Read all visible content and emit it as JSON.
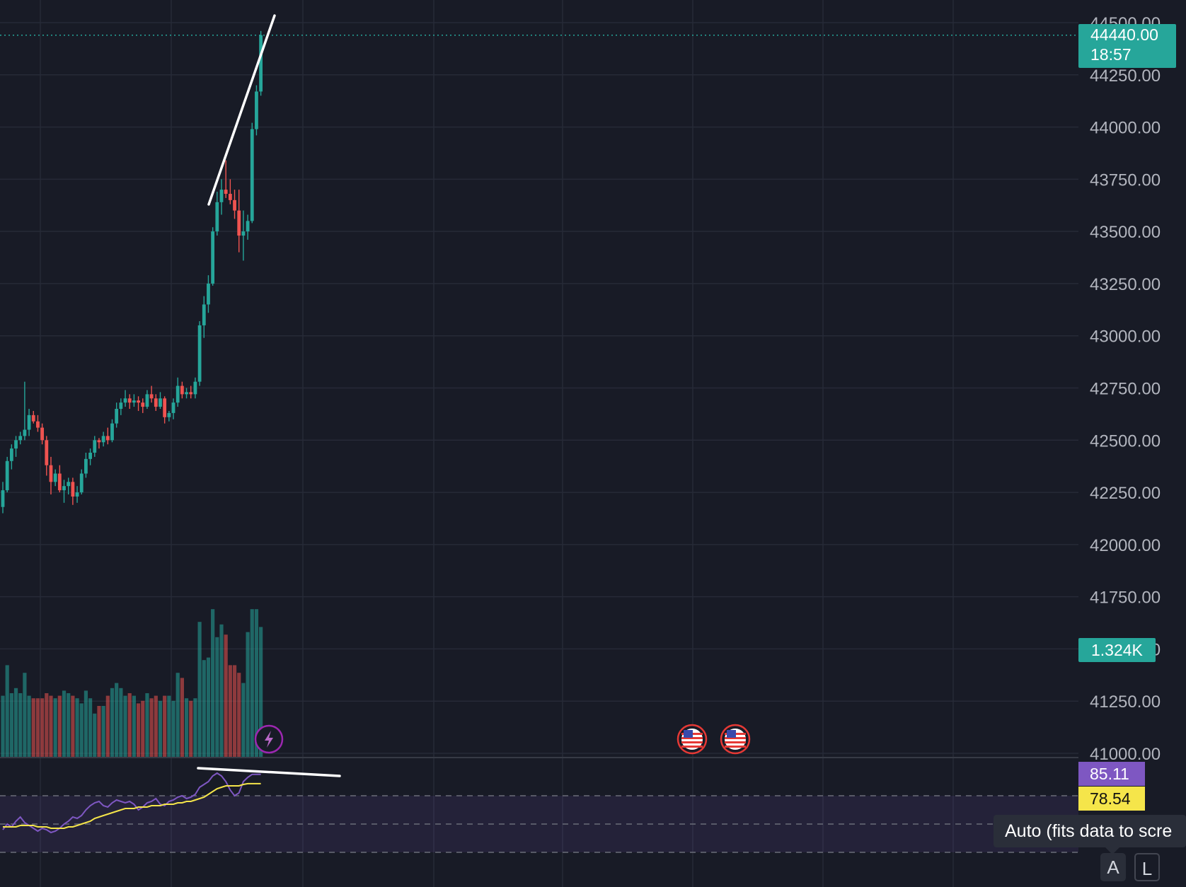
{
  "chart_data": {
    "type": "candlestick",
    "price_axis": {
      "ticks": [
        "44500.00",
        "44250.00",
        "44000.00",
        "43750.00",
        "43500.00",
        "43250.00",
        "43000.00",
        "42750.00",
        "42500.00",
        "42250.00",
        "42000.00",
        "41750.00",
        "41500.00",
        "41250.00",
        "41000.00"
      ],
      "range": [
        41000,
        44500
      ]
    },
    "last_price": {
      "value": "44440.00",
      "countdown": "18:57",
      "color": "#26a69a"
    },
    "volume_label": "1.324K",
    "ohlc": [
      [
        42180,
        42300,
        42150,
        42260
      ],
      [
        42260,
        42420,
        42250,
        42400
      ],
      [
        42400,
        42480,
        42360,
        42460
      ],
      [
        42460,
        42520,
        42420,
        42500
      ],
      [
        42500,
        42540,
        42480,
        42520
      ],
      [
        42520,
        42780,
        42500,
        42550
      ],
      [
        42550,
        42650,
        42520,
        42620
      ],
      [
        42620,
        42640,
        42580,
        42590
      ],
      [
        42590,
        42620,
        42540,
        42560
      ],
      [
        42560,
        42580,
        42480,
        42500
      ],
      [
        42500,
        42520,
        42330,
        42380
      ],
      [
        42380,
        42420,
        42240,
        42300
      ],
      [
        42300,
        42360,
        42280,
        42340
      ],
      [
        42340,
        42380,
        42250,
        42260
      ],
      [
        42260,
        42310,
        42200,
        42280
      ],
      [
        42280,
        42320,
        42240,
        42300
      ],
      [
        42300,
        42320,
        42190,
        42230
      ],
      [
        42230,
        42280,
        42200,
        42250
      ],
      [
        42250,
        42360,
        42240,
        42340
      ],
      [
        42340,
        42440,
        42320,
        42410
      ],
      [
        42410,
        42460,
        42380,
        42440
      ],
      [
        42440,
        42520,
        42420,
        42500
      ],
      [
        42500,
        42510,
        42460,
        42490
      ],
      [
        42490,
        42540,
        42470,
        42520
      ],
      [
        42520,
        42560,
        42480,
        42500
      ],
      [
        42500,
        42600,
        42490,
        42580
      ],
      [
        42580,
        42680,
        42560,
        42650
      ],
      [
        42650,
        42700,
        42620,
        42680
      ],
      [
        42680,
        42740,
        42660,
        42700
      ],
      [
        42700,
        42720,
        42650,
        42680
      ],
      [
        42680,
        42720,
        42660,
        42690
      ],
      [
        42690,
        42710,
        42640,
        42680
      ],
      [
        42680,
        42700,
        42630,
        42660
      ],
      [
        42660,
        42740,
        42650,
        42720
      ],
      [
        42720,
        42760,
        42680,
        42700
      ],
      [
        42700,
        42720,
        42640,
        42660
      ],
      [
        42660,
        42730,
        42650,
        42700
      ],
      [
        42700,
        42710,
        42580,
        42610
      ],
      [
        42610,
        42640,
        42590,
        42630
      ],
      [
        42630,
        42700,
        42600,
        42680
      ],
      [
        42680,
        42800,
        42660,
        42760
      ],
      [
        42760,
        42780,
        42700,
        42720
      ],
      [
        42720,
        42750,
        42700,
        42730
      ],
      [
        42730,
        42760,
        42700,
        42720
      ],
      [
        42720,
        42800,
        42700,
        42780
      ],
      [
        42780,
        43070,
        42760,
        43050
      ],
      [
        43050,
        43190,
        42990,
        43150
      ],
      [
        43150,
        43290,
        43110,
        43250
      ],
      [
        43250,
        43520,
        43240,
        43500
      ],
      [
        43500,
        43690,
        43480,
        43640
      ],
      [
        43640,
        43750,
        43580,
        43700
      ],
      [
        43700,
        43840,
        43660,
        43680
      ],
      [
        43680,
        43750,
        43630,
        43650
      ],
      [
        43650,
        43700,
        43560,
        43600
      ],
      [
        43600,
        43700,
        43400,
        43480
      ],
      [
        43480,
        43600,
        43360,
        43500
      ],
      [
        43500,
        43580,
        43460,
        43550
      ],
      [
        43550,
        44020,
        43540,
        43990
      ],
      [
        43990,
        44200,
        43960,
        44170
      ],
      [
        44170,
        44460,
        44150,
        44440
      ]
    ],
    "volume": [
      240,
      360,
      250,
      270,
      250,
      330,
      240,
      230,
      230,
      230,
      250,
      240,
      230,
      240,
      260,
      250,
      240,
      230,
      210,
      260,
      230,
      170,
      200,
      200,
      240,
      270,
      290,
      270,
      240,
      250,
      240,
      210,
      220,
      250,
      230,
      240,
      220,
      240,
      240,
      220,
      330,
      310,
      230,
      220,
      230,
      530,
      380,
      390,
      580,
      470,
      520,
      480,
      360,
      360,
      330,
      290,
      490,
      580,
      580,
      510
    ],
    "volume_colors_note": "",
    "volume_max": 1324,
    "rsi": [
      46,
      50,
      48,
      52,
      55,
      51,
      49,
      47,
      45,
      47,
      46,
      44,
      45,
      47,
      50,
      52,
      55,
      54,
      56,
      60,
      63,
      65,
      66,
      63,
      62,
      65,
      67,
      66,
      65,
      66,
      64,
      60,
      62,
      65,
      66,
      68,
      64,
      63,
      66,
      67,
      69,
      70,
      68,
      69,
      71,
      76,
      78,
      80,
      84,
      86,
      84,
      80,
      74,
      70,
      72,
      80,
      83,
      85.11,
      85.11,
      85.11
    ],
    "rsi_ma": [
      48,
      48,
      48,
      48,
      49,
      49,
      49,
      49,
      48,
      48,
      48,
      47,
      47,
      47,
      47,
      48,
      48,
      49,
      50,
      51,
      52,
      54,
      55,
      56,
      57,
      58,
      59,
      60,
      61,
      61,
      61,
      62,
      62,
      62,
      63,
      63,
      63,
      64,
      64,
      64,
      65,
      65,
      66,
      66,
      67,
      68,
      69,
      71,
      73,
      75,
      76,
      77,
      77,
      77,
      77,
      78,
      78.54,
      78.54,
      78.54,
      78.54
    ],
    "rsi_labels": {
      "rsi": "85.11",
      "rsi_ma": "78.54"
    },
    "rsi_bands": [
      70,
      50,
      30
    ],
    "trendlines": "white lines drawn on price and RSI (divergence)",
    "colors": {
      "up": "#26a69a",
      "down": "#ef5350",
      "rsi": "#7e57c2",
      "rsi_ma": "#f5e54a",
      "bg": "#181b26",
      "grid": "#262a37",
      "axis_text": "#b2b5be"
    }
  },
  "ui": {
    "tooltip": "Auto (fits data to scre",
    "btn_auto": "A",
    "btn_log": "L"
  },
  "icons": {
    "events": [
      "lightning-event-icon",
      "us-flag-event-icon",
      "us-flag-event-icon"
    ]
  }
}
